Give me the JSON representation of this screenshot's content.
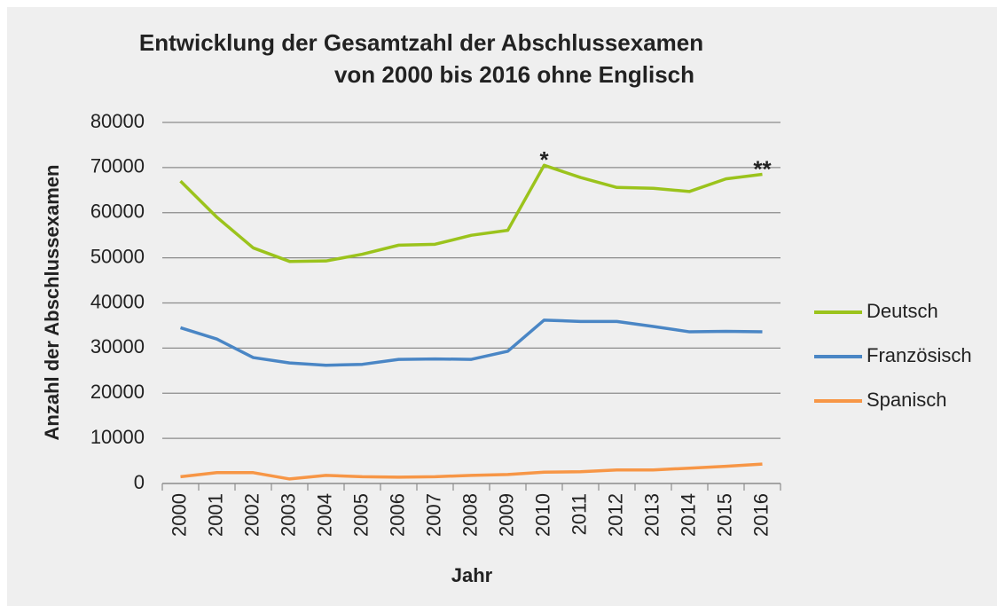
{
  "chart_data": {
    "type": "line",
    "title": [
      "Entwicklung der Gesamtzahl der Abschlussexamen",
      "von 2000 bis 2016 ohne Englisch"
    ],
    "x_label": "Jahr",
    "y_label": "Anzahl der Abschlussexamen",
    "categories": [
      "2000",
      "2001",
      "2002",
      "2003",
      "2004",
      "2005",
      "2006",
      "2007",
      "2008",
      "2009",
      "2010",
      "2011",
      "2012",
      "2013",
      "2014",
      "2015",
      "2016"
    ],
    "series": [
      {
        "name": "Deutsch",
        "color": "#9bc31c",
        "values": [
          67000,
          59000,
          52200,
          49200,
          49300,
          50800,
          52800,
          53000,
          55000,
          56100,
          70500,
          67800,
          65600,
          65400,
          64700,
          67500,
          68500
        ]
      },
      {
        "name": "Französisch",
        "color": "#4a86c5",
        "values": [
          34500,
          32000,
          27900,
          26700,
          26200,
          26400,
          27500,
          27600,
          27500,
          29300,
          36200,
          35900,
          35900,
          34800,
          33600,
          33700,
          33600
        ]
      },
      {
        "name": "Spanisch",
        "color": "#f79646",
        "values": [
          1500,
          2400,
          2400,
          1000,
          1800,
          1500,
          1400,
          1500,
          1800,
          2000,
          2500,
          2600,
          3000,
          3000,
          3400,
          3800,
          4300
        ]
      }
    ],
    "annotations": [
      {
        "text": "*",
        "category": 10,
        "series": 0
      },
      {
        "text": "**",
        "category": 16,
        "series": 0
      }
    ],
    "ylim": [
      0,
      80000
    ],
    "yticks": [
      0,
      10000,
      20000,
      30000,
      40000,
      50000,
      60000,
      70000,
      80000
    ],
    "grid": true,
    "legend": "right"
  }
}
